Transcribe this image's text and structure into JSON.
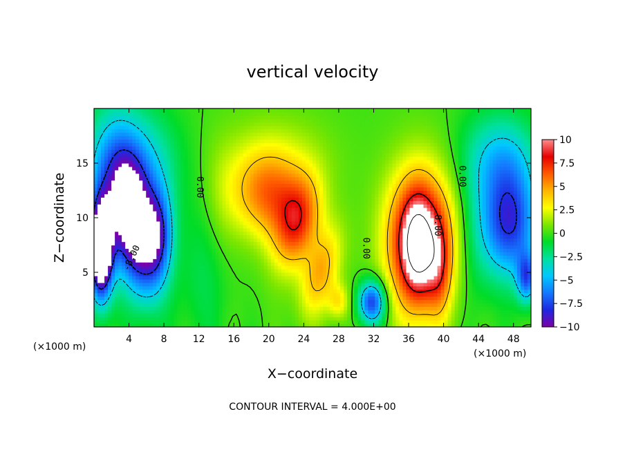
{
  "chart_data": {
    "type": "heatmap",
    "title": "vertical velocity",
    "xlabel": "X−coordinate",
    "ylabel": "Z−coordinate",
    "x_unit_left": "(×1000 m)",
    "x_unit_right": "(×1000 m)",
    "xlim": [
      0,
      50
    ],
    "ylim": [
      0,
      20
    ],
    "xticks": [
      4,
      8,
      12,
      16,
      20,
      24,
      28,
      32,
      36,
      40,
      44,
      48
    ],
    "yticks": [
      5,
      10,
      15
    ],
    "contour_interval_text": "CONTOUR INTERVAL = 4.000E+00",
    "contour_labels": [
      {
        "text": "0.00",
        "x": 11.8,
        "y": 12.8,
        "rot": 90
      },
      {
        "text": "0.00",
        "x": 41.8,
        "y": 13.8,
        "rot": 90
      },
      {
        "text": "0.00",
        "x": 30.8,
        "y": 7.2,
        "rot": 90
      },
      {
        "text": "8.00",
        "x": 39.0,
        "y": 9.3,
        "rot": 90
      },
      {
        "text": "-8.00",
        "x": 4.6,
        "y": 6.2,
        "rot": -65
      }
    ],
    "colorbar": {
      "ticks": [
        10,
        7.5,
        5,
        2.5,
        0,
        -2.5,
        -5,
        -7.5,
        -10
      ],
      "tick_labels": [
        "10",
        "7.5",
        "5",
        "2.5",
        "0",
        "−2.5",
        "−5",
        "−7.5",
        "−10"
      ],
      "range": [
        -10,
        10
      ],
      "stops": [
        "#7e00a8",
        "#1e28e0",
        "#1478ff",
        "#00c8ff",
        "#00e0a0",
        "#00dc28",
        "#7ce600",
        "#ffff00",
        "#ffb400",
        "#ff5a00",
        "#e60000",
        "#ff8c8c"
      ]
    },
    "features": [
      {
        "x": 0.8,
        "z": 7.0,
        "sx": 0.9,
        "sz": 3.0,
        "amp": -14,
        "rot": 0
      },
      {
        "x": 4.8,
        "z": 9.0,
        "sx": 1.7,
        "sz": 4.2,
        "amp": -11,
        "rot": -0.18
      },
      {
        "x": 7.4,
        "z": 8.5,
        "sx": 1.2,
        "sz": 3.0,
        "amp": -6,
        "rot": 0
      },
      {
        "x": 5.0,
        "z": 15.0,
        "sx": 3.2,
        "sz": 3.6,
        "amp": -4,
        "rot": 0
      },
      {
        "x": 1.8,
        "z": 12.0,
        "sx": 2.2,
        "sz": 5.5,
        "amp": -4,
        "rot": 0
      },
      {
        "x": 20.0,
        "z": 12.0,
        "sx": 3.0,
        "sz": 2.8,
        "amp": 5.5,
        "rot": 0.5
      },
      {
        "x": 23.2,
        "z": 9.3,
        "sx": 1.7,
        "sz": 3.0,
        "amp": 6.0,
        "rot": 0.3
      },
      {
        "x": 26.0,
        "z": 5.0,
        "sx": 1.4,
        "sz": 3.0,
        "amp": 4.5,
        "rot": 0.35
      },
      {
        "x": 28.0,
        "z": 2.3,
        "sx": 0.9,
        "sz": 1.2,
        "amp": 3.0,
        "rot": 0
      },
      {
        "x": 21.0,
        "z": 15.5,
        "sx": 4.5,
        "sz": 3.0,
        "amp": 1.5,
        "rot": 0
      },
      {
        "x": 31.8,
        "z": 2.3,
        "sx": 1.1,
        "sz": 1.4,
        "amp": -8,
        "rot": 0
      },
      {
        "x": 37.3,
        "z": 7.8,
        "sx": 2.7,
        "sz": 4.6,
        "amp": 10,
        "rot": 0
      },
      {
        "x": 37.0,
        "z": 7.5,
        "sx": 1.3,
        "sz": 3.2,
        "amp": 5,
        "rot": 0
      },
      {
        "x": 39.5,
        "z": 5.5,
        "sx": 0.9,
        "sz": 3.0,
        "amp": 3,
        "rot": 0
      },
      {
        "x": 47.5,
        "z": 9.5,
        "sx": 2.3,
        "sz": 3.5,
        "amp": -8,
        "rot": 0
      },
      {
        "x": 49.5,
        "z": 4.5,
        "sx": 0.8,
        "sz": 1.6,
        "amp": -6,
        "rot": 0
      },
      {
        "x": 46.5,
        "z": 15.5,
        "sx": 3.0,
        "sz": 3.0,
        "amp": -4,
        "rot": 0
      },
      {
        "x": 12.5,
        "z": 5.0,
        "sx": 2.0,
        "sz": 5.0,
        "amp": -1.5,
        "rot": 0
      },
      {
        "x": 43.5,
        "z": 8.0,
        "sx": 1.5,
        "sz": 5.0,
        "amp": -1.2,
        "rot": 0
      },
      {
        "x": 14.5,
        "z": 11.0,
        "sx": 1.5,
        "sz": 4.0,
        "amp": 1.0,
        "rot": 0
      }
    ]
  }
}
